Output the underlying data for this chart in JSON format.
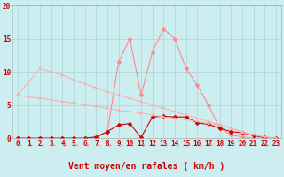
{
  "background_color": "#cceef0",
  "grid_color": "#aad4d8",
  "x_values": [
    0,
    1,
    2,
    3,
    4,
    5,
    6,
    7,
    8,
    9,
    10,
    11,
    12,
    13,
    14,
    15,
    16,
    17,
    18,
    19,
    20,
    21,
    22,
    23
  ],
  "x_labels": [
    "0",
    "1",
    "2",
    "3",
    "4",
    "5",
    "6",
    "7",
    "8",
    "9",
    "10",
    "11",
    "12",
    "13",
    "14",
    "15",
    "16",
    "17",
    "18",
    "19",
    "20",
    "21",
    "22",
    "23"
  ],
  "xlabel_text": "Vent moyen/en rafales ( km/h )",
  "ylim": [
    0,
    20
  ],
  "yticks": [
    0,
    5,
    10,
    15,
    20
  ],
  "line_rafales_y": [
    0.0,
    0.0,
    0.0,
    0.0,
    0.0,
    0.0,
    0.0,
    0.0,
    1.0,
    11.5,
    15.0,
    6.5,
    13.0,
    16.5,
    15.0,
    10.5,
    8.0,
    5.0,
    1.5,
    0.5,
    0.2,
    0.0,
    0.0,
    0.0
  ],
  "line_rafales_color": "#ff8888",
  "line_moyen_y": [
    0.0,
    0.0,
    0.0,
    0.0,
    0.0,
    0.0,
    0.0,
    0.2,
    1.0,
    2.0,
    2.2,
    0.1,
    3.2,
    3.3,
    3.2,
    3.2,
    2.3,
    2.1,
    1.5,
    1.0,
    0.8,
    0.4,
    0.1,
    0.0
  ],
  "line_moyen_color": "#cc0000",
  "line_diag1_y": [
    6.5,
    8.5,
    10.5,
    10.0,
    9.5,
    8.8,
    8.2,
    7.6,
    7.0,
    6.5,
    6.0,
    5.5,
    5.0,
    4.5,
    4.0,
    3.5,
    3.0,
    2.5,
    2.0,
    1.5,
    0.8,
    0.5,
    0.2,
    0.0
  ],
  "line_diag1_color": "#ffaaaa",
  "line_diag2_y": [
    6.5,
    6.2,
    6.0,
    5.8,
    5.5,
    5.3,
    5.0,
    4.8,
    4.5,
    4.2,
    4.0,
    3.8,
    3.5,
    3.2,
    3.0,
    2.8,
    2.5,
    2.2,
    2.0,
    1.5,
    1.0,
    0.5,
    0.2,
    0.0
  ],
  "line_diag2_color": "#ffaaaa",
  "arrow_color": "#ff8888",
  "tick_color": "#cc0000",
  "spine_color": "#cc0000",
  "tick_fontsize": 5.5,
  "xlabel_fontsize": 7.0
}
